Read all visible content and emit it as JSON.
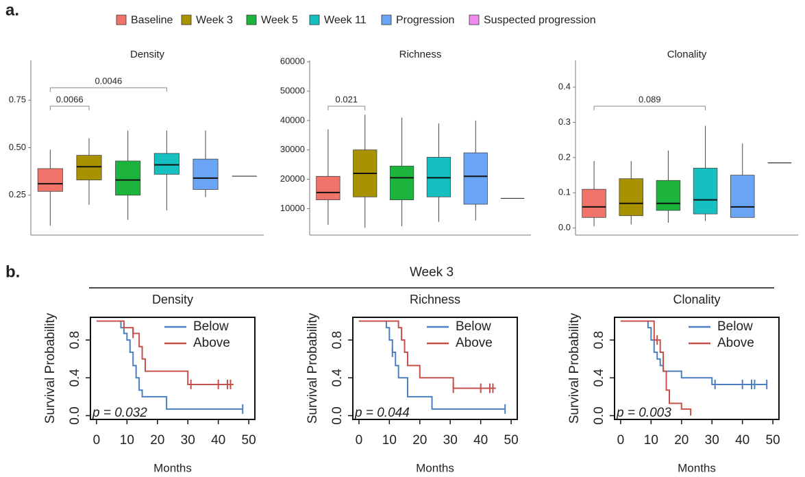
{
  "panel_labels": [
    "a.",
    "b."
  ],
  "section_title": "Week 3",
  "legend": [
    {
      "name": "Baseline",
      "color": "#f0736a"
    },
    {
      "name": "Week 3",
      "color": "#a89200"
    },
    {
      "name": "Week 5",
      "color": "#1cb43c"
    },
    {
      "name": "Week 11",
      "color": "#16c0c0"
    },
    {
      "name": "Progression",
      "color": "#6aa5f5"
    },
    {
      "name": "Suspected progression",
      "color": "#f08cf0"
    }
  ],
  "chart_data": [
    {
      "type": "box",
      "title": "Density",
      "ylim": [
        0.04,
        0.96
      ],
      "yticks": [
        0.25,
        {
          "value": 0.5,
          "label": "0.50"
        },
        0.75
      ],
      "series": [
        {
          "color": "#f0736a",
          "min": 0.09,
          "q1": 0.27,
          "median": 0.31,
          "q3": 0.39,
          "max": 0.49
        },
        {
          "color": "#a89200",
          "min": 0.2,
          "q1": 0.33,
          "median": 0.4,
          "q3": 0.46,
          "max": 0.55
        },
        {
          "color": "#1cb43c",
          "min": 0.12,
          "q1": 0.25,
          "median": 0.33,
          "q3": 0.43,
          "max": 0.59
        },
        {
          "color": "#16c0c0",
          "min": 0.17,
          "q1": 0.36,
          "median": 0.41,
          "q3": 0.47,
          "max": 0.59
        },
        {
          "color": "#6aa5f5",
          "min": 0.24,
          "q1": 0.28,
          "median": 0.34,
          "q3": 0.44,
          "max": 0.59
        },
        {
          "color": "#f08cf0",
          "median": 0.35
        }
      ],
      "brackets": [
        {
          "between": [
            0,
            1
          ],
          "label": "0.0066"
        },
        {
          "between": [
            0,
            3
          ],
          "label": "0.0046"
        }
      ]
    },
    {
      "type": "box",
      "title": "Richness",
      "ylim": [
        1000,
        60500
      ],
      "yticks": [
        10000,
        20000,
        30000,
        40000,
        50000,
        60000
      ],
      "series": [
        {
          "color": "#f0736a",
          "min": 4500,
          "q1": 13000,
          "median": 15500,
          "q3": 21000,
          "max": 37000
        },
        {
          "color": "#a89200",
          "min": 3500,
          "q1": 14000,
          "median": 22000,
          "q3": 30000,
          "max": 42000
        },
        {
          "color": "#1cb43c",
          "min": 4000,
          "q1": 13000,
          "median": 20500,
          "q3": 24500,
          "max": 41000
        },
        {
          "color": "#16c0c0",
          "min": 5500,
          "q1": 14000,
          "median": 20500,
          "q3": 27500,
          "max": 39000
        },
        {
          "color": "#6aa5f5",
          "min": 6000,
          "q1": 11500,
          "median": 21000,
          "q3": 29000,
          "max": 40000
        },
        {
          "color": "#f08cf0",
          "median": 13500
        }
      ],
      "brackets": [
        {
          "between": [
            0,
            1
          ],
          "label": "0.021"
        }
      ]
    },
    {
      "type": "box",
      "title": "Clonality",
      "ylim": [
        -0.02,
        0.476
      ],
      "yticks": [
        {
          "value": 0,
          "label": "0.0"
        },
        0.1,
        0.2,
        0.3,
        0.4
      ],
      "series": [
        {
          "color": "#f0736a",
          "min": 0.005,
          "q1": 0.03,
          "median": 0.06,
          "q3": 0.11,
          "max": 0.19
        },
        {
          "color": "#a89200",
          "min": 0.01,
          "q1": 0.035,
          "median": 0.07,
          "q3": 0.14,
          "max": 0.19
        },
        {
          "color": "#1cb43c",
          "min": 0.015,
          "q1": 0.05,
          "median": 0.07,
          "q3": 0.135,
          "max": 0.22
        },
        {
          "color": "#16c0c0",
          "min": 0.02,
          "q1": 0.04,
          "median": 0.08,
          "q3": 0.17,
          "max": 0.29
        },
        {
          "color": "#6aa5f5",
          "min": 0.03,
          "q1": 0.03,
          "median": 0.06,
          "q3": 0.15,
          "max": 0.24
        },
        {
          "color": "#f08cf0",
          "median": 0.185
        }
      ],
      "brackets": [
        {
          "between": [
            0,
            3
          ],
          "label": "0.089"
        }
      ]
    },
    {
      "type": "km",
      "title": "Density",
      "xlabel": "Months",
      "ylabel": "Survival Probability",
      "annotation": "p = 0.032",
      "xlim": [
        -2,
        52
      ],
      "ylim": [
        -0.04,
        1.04
      ],
      "xticks": [
        0,
        10,
        20,
        30,
        40,
        50
      ],
      "yticks": [
        {
          "value": 0,
          "label": "0.0"
        },
        0.4,
        0.8
      ],
      "series": [
        {
          "name": "Below",
          "color": "#4a7fc1",
          "x": [
            0,
            8,
            9,
            10,
            11,
            12,
            13,
            14,
            15,
            23,
            48
          ],
          "values": [
            1,
            0.93,
            0.87,
            0.8,
            0.67,
            0.53,
            0.4,
            0.27,
            0.2,
            0.07,
            0.07
          ],
          "censored": [
            48
          ]
        },
        {
          "name": "Above",
          "color": "#c5504b",
          "x": [
            0,
            9,
            12,
            14,
            15,
            16,
            30,
            45
          ],
          "values": [
            1,
            0.93,
            0.87,
            0.73,
            0.6,
            0.47,
            0.33,
            0.33
          ],
          "censored": [
            12,
            31,
            40,
            43,
            44
          ]
        }
      ]
    },
    {
      "type": "km",
      "title": "Richness",
      "xlabel": "Months",
      "ylabel": "Survival Probability",
      "annotation": "p = 0.044",
      "xlim": [
        -2,
        52
      ],
      "ylim": [
        -0.04,
        1.04
      ],
      "xticks": [
        0,
        10,
        20,
        30,
        40,
        50
      ],
      "yticks": [
        {
          "value": 0,
          "label": "0.0"
        },
        0.4,
        0.8
      ],
      "series": [
        {
          "name": "Below",
          "color": "#4a7fc1",
          "x": [
            0,
            9,
            10,
            11,
            12,
            13,
            16,
            24,
            48
          ],
          "values": [
            1,
            0.93,
            0.8,
            0.67,
            0.53,
            0.4,
            0.2,
            0.07,
            0.07
          ],
          "censored": [
            11,
            48
          ]
        },
        {
          "name": "Above",
          "color": "#c5504b",
          "x": [
            0,
            13,
            14,
            15,
            16,
            20,
            31,
            45
          ],
          "values": [
            1,
            0.93,
            0.8,
            0.67,
            0.53,
            0.4,
            0.29,
            0.29
          ],
          "censored": [
            31,
            40,
            43,
            44
          ]
        }
      ]
    },
    {
      "type": "km",
      "title": "Clonality",
      "xlabel": "Months",
      "ylabel": "Survival Probability",
      "annotation": "p = 0.003",
      "xlim": [
        -2,
        52
      ],
      "ylim": [
        -0.04,
        1.04
      ],
      "xticks": [
        0,
        10,
        20,
        30,
        40,
        50
      ],
      "yticks": [
        {
          "value": 0,
          "label": "0.0"
        },
        0.4,
        0.8
      ],
      "series": [
        {
          "name": "Below",
          "color": "#4a7fc1",
          "x": [
            0,
            9,
            10,
            11,
            12,
            13,
            14,
            20,
            30,
            48
          ],
          "values": [
            1,
            0.93,
            0.8,
            0.67,
            0.6,
            0.53,
            0.47,
            0.4,
            0.33,
            0.33
          ],
          "censored": [
            31,
            40,
            43,
            44,
            48
          ]
        },
        {
          "name": "Above",
          "color": "#c5504b",
          "x": [
            0,
            11,
            13,
            14,
            15,
            16,
            20,
            23
          ],
          "values": [
            1,
            0.8,
            0.67,
            0.47,
            0.27,
            0.13,
            0.07,
            0
          ],
          "censored": [
            12
          ]
        }
      ]
    }
  ]
}
